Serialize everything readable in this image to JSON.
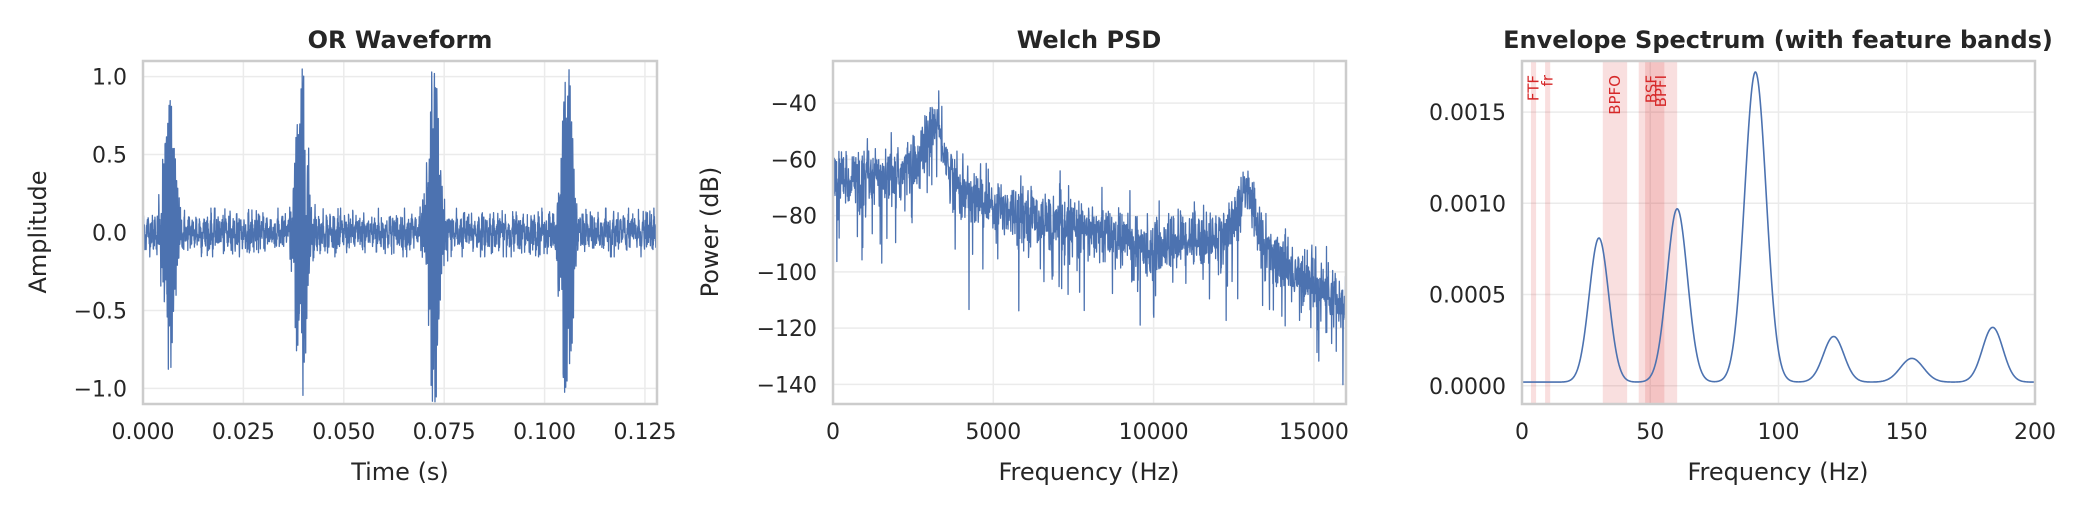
{
  "chart_data": [
    {
      "type": "line",
      "title": "OR Waveform",
      "xlabel": "Time (s)",
      "ylabel": "Amplitude",
      "xlim": [
        0,
        0.128
      ],
      "ylim": [
        -1.1,
        1.1
      ],
      "xticks": [
        0.0,
        0.025,
        0.05,
        0.075,
        0.1,
        0.125
      ],
      "xtick_labels": [
        "0.000",
        "0.025",
        "0.050",
        "0.075",
        "0.100",
        "0.125"
      ],
      "yticks": [
        -1.0,
        -0.5,
        0.0,
        0.5,
        1.0
      ],
      "ytick_labels": [
        "−1.0",
        "−0.5",
        "0.0",
        "0.5",
        "1.0"
      ],
      "grid": true,
      "series_color": "#4c72b0",
      "impacts": [
        {
          "t": 0.0065,
          "amp": 0.82
        },
        {
          "t": 0.0395,
          "amp": 0.99
        },
        {
          "t": 0.0725,
          "amp": 0.98
        },
        {
          "t": 0.1055,
          "amp": 0.99
        }
      ],
      "baseline_noise_amp": 0.12
    },
    {
      "type": "line",
      "title": "Welch PSD",
      "xlabel": "Frequency (Hz)",
      "ylabel": "Power (dB)",
      "xlim": [
        0,
        16000
      ],
      "ylim": [
        -147,
        -25
      ],
      "xticks": [
        0,
        5000,
        10000,
        15000
      ],
      "xtick_labels": [
        "0",
        "5000",
        "10000",
        "15000"
      ],
      "yticks": [
        -140,
        -120,
        -100,
        -80,
        -60,
        -40
      ],
      "ytick_labels": [
        "−140",
        "−120",
        "−100",
        "−80",
        "−60",
        "−40"
      ],
      "grid": true,
      "series_color": "#4c72b0",
      "trend": {
        "x": [
          0,
          1000,
          2000,
          2700,
          3200,
          3600,
          4000,
          5000,
          7000,
          9000,
          10000,
          11000,
          12000,
          12500,
          12900,
          13400,
          14000,
          15000,
          16000
        ],
        "y": [
          -66,
          -67,
          -66,
          -60,
          -45,
          -63,
          -72,
          -76,
          -83,
          -88,
          -92,
          -88,
          -88,
          -82,
          -70,
          -88,
          -98,
          -104,
          -113
        ]
      }
    },
    {
      "type": "line",
      "title": "Envelope Spectrum (with feature bands)",
      "xlabel": "Frequency (Hz)",
      "ylabel": "",
      "xlim": [
        0,
        200
      ],
      "ylim": [
        -0.0001,
        0.00178
      ],
      "xticks": [
        0,
        50,
        100,
        150,
        200
      ],
      "xtick_labels": [
        "0",
        "50",
        "100",
        "150",
        "200"
      ],
      "yticks": [
        0.0,
        0.0005,
        0.001,
        0.0015
      ],
      "ytick_labels": [
        "0.0000",
        "0.0005",
        "0.0010",
        "0.0015"
      ],
      "grid": true,
      "series_color": "#4c72b0",
      "peaks": [
        {
          "f": 30,
          "height": 0.00079,
          "width": 3.8
        },
        {
          "f": 60.5,
          "height": 0.00095,
          "width": 4.0
        },
        {
          "f": 91,
          "height": 0.0017,
          "width": 4.2
        },
        {
          "f": 121.5,
          "height": 0.00025,
          "width": 4.0
        },
        {
          "f": 152,
          "height": 0.00013,
          "width": 4.5
        },
        {
          "f": 183.5,
          "height": 0.0003,
          "width": 4.0
        }
      ],
      "bands": [
        {
          "label": "FTF",
          "lo": 3.5,
          "hi": 5.5
        },
        {
          "label": "fr",
          "lo": 9.0,
          "hi": 11.0
        },
        {
          "label": "BPFO",
          "lo": 31.5,
          "hi": 41.0
        },
        {
          "label": "BSF",
          "lo": 45.5,
          "hi": 55.5
        },
        {
          "label": "BPFI",
          "lo": 48.0,
          "hi": 60.5
        }
      ],
      "band_color": "#d62728"
    }
  ]
}
